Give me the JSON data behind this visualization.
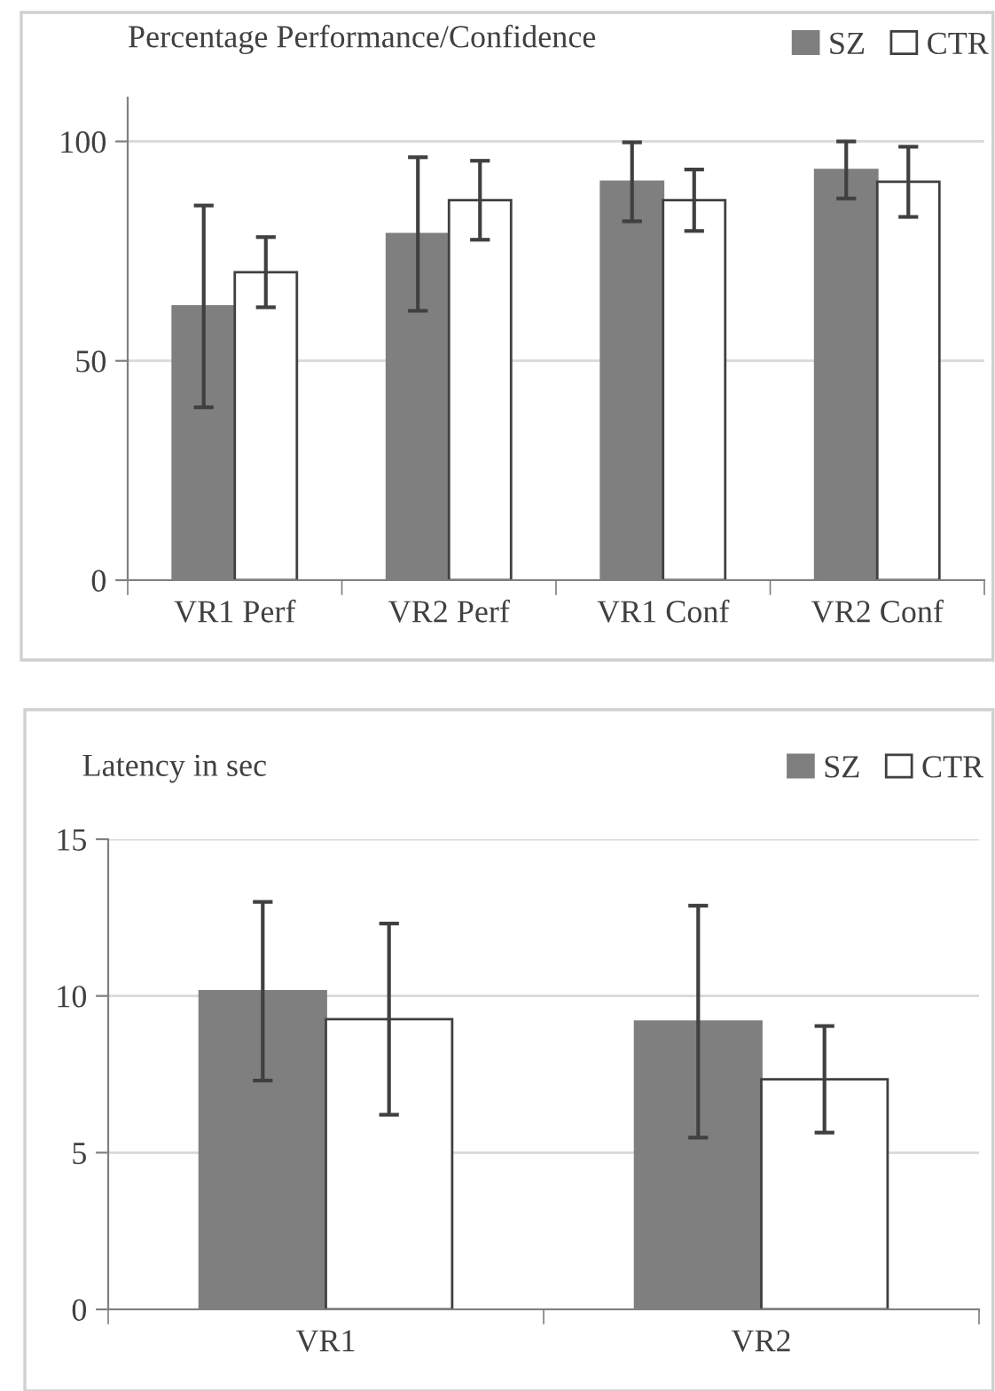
{
  "chart_data": [
    {
      "type": "bar",
      "title": "Percentage Performance/Confidence",
      "categories": [
        "VR1 Perf",
        "VR2 Perf",
        "VR1 Conf",
        "VR2 Conf"
      ],
      "series": [
        {
          "name": "SZ",
          "color": "#7f7f7f",
          "values": [
            62.4,
            78.9,
            90.8,
            93.5
          ],
          "errors": [
            23,
            17.5,
            9,
            6.5
          ]
        },
        {
          "name": "CTR",
          "color": "#ffffff",
          "values": [
            70.2,
            86.6,
            86.6,
            90.8
          ],
          "errors": [
            8,
            9,
            7,
            8
          ]
        }
      ],
      "ylim": [
        0,
        110
      ],
      "yticks": [
        0,
        50,
        100
      ],
      "grid": "y",
      "legend": "top right"
    },
    {
      "type": "bar",
      "title": "Latency in sec",
      "categories": [
        "VR1",
        "VR2"
      ],
      "series": [
        {
          "name": "SZ",
          "color": "#7f7f7f",
          "values": [
            10.15,
            9.18
          ],
          "errors": [
            2.85,
            3.7
          ]
        },
        {
          "name": "CTR",
          "color": "#ffffff",
          "values": [
            9.26,
            7.34
          ],
          "errors": [
            3.05,
            1.7
          ]
        }
      ],
      "ylim": [
        0,
        15
      ],
      "yticks": [
        0,
        5,
        10,
        15
      ],
      "grid": "y",
      "legend": "top right"
    }
  ]
}
